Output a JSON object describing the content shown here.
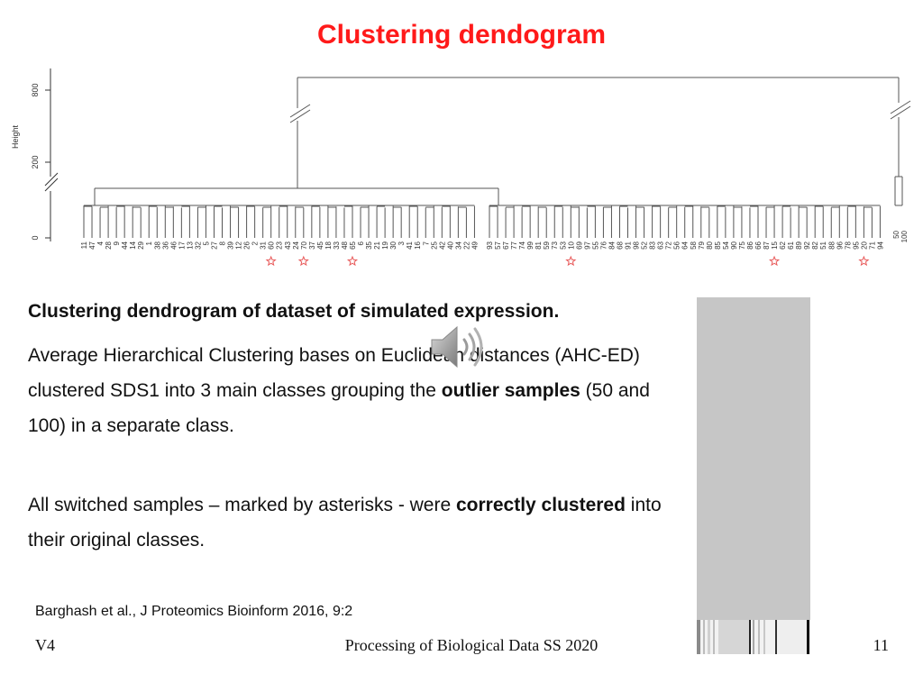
{
  "slide": {
    "title": "Clustering dendogram",
    "caption_heading": "Clustering dendrogram of dataset of simulated expression.",
    "para1_a": "Average Hierarchical Clustering bases on Euclidean distances (AHC-ED) clustered SDS1 into 3 main classes grouping the ",
    "para1_b": "outlier samples",
    "para1_c": " (50 and 100) in a separate class.",
    "para2_a": "All switched samples – marked by asterisks - were ",
    "para2_b": "correctly clustered",
    "para2_c": " into their original classes.",
    "citation": "Barghash et al., J Proteomics Bioinform 2016, 9:2",
    "footer_left": "V4",
    "footer_center": "Processing of Biological Data SS 2020",
    "footer_right": "11"
  },
  "colors": {
    "title": "#ff1a1a",
    "tree": "#555555",
    "asterisk": "#e85a5a",
    "panel": "#c6c6c6"
  },
  "chart_data": {
    "type": "dendrogram",
    "ylabel": "Height",
    "yticks": [
      "0",
      "200",
      "800"
    ],
    "axis_break": true,
    "clusters": [
      {
        "leaves": [
          "11",
          "47",
          "4",
          "28",
          "9",
          "44",
          "14",
          "29",
          "1",
          "38",
          "36",
          "46",
          "17",
          "13",
          "32",
          "5",
          "27",
          "8",
          "39",
          "12",
          "26",
          "2",
          "31",
          "60",
          "23",
          "43",
          "24",
          "70",
          "37",
          "45",
          "18",
          "33",
          "48",
          "65",
          "6",
          "35",
          "21",
          "19",
          "30",
          "3",
          "41",
          "16",
          "7",
          "25",
          "42",
          "40",
          "34",
          "22",
          "49"
        ]
      },
      {
        "leaves": [
          "93",
          "57",
          "67",
          "77",
          "74",
          "99",
          "81",
          "59",
          "73",
          "53",
          "10",
          "69",
          "97",
          "55",
          "76",
          "84",
          "68",
          "91",
          "98",
          "52",
          "83",
          "63",
          "72",
          "56",
          "64",
          "58",
          "79",
          "80",
          "85",
          "54",
          "90",
          "75",
          "86",
          "66",
          "87",
          "15",
          "62",
          "61",
          "89",
          "92",
          "82",
          "51",
          "88",
          "96",
          "78",
          "95",
          "20",
          "71",
          "94"
        ]
      },
      {
        "leaves": [
          "50",
          "100"
        ]
      }
    ],
    "asterisk_leaves": [
      "60",
      "70",
      "65",
      "10",
      "15",
      "20"
    ]
  }
}
